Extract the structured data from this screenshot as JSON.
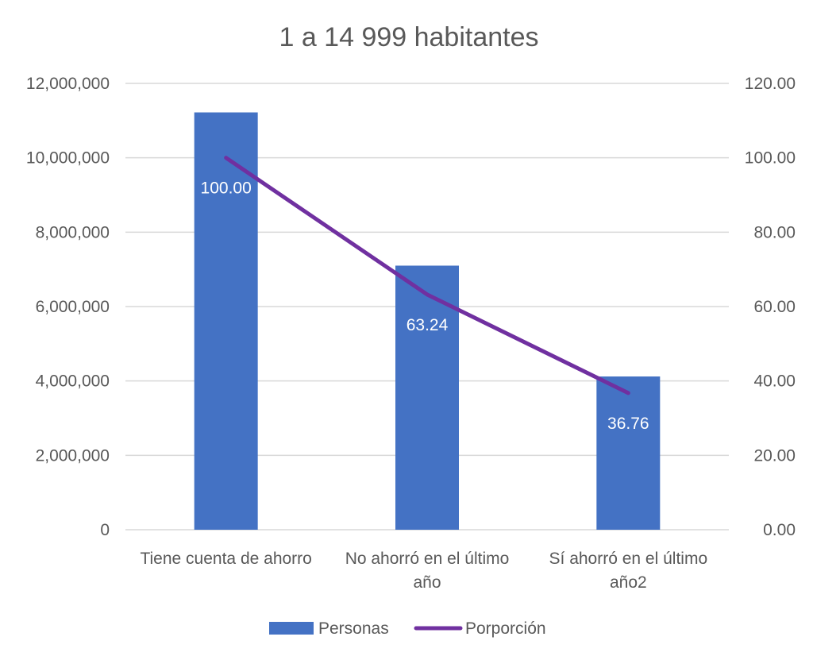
{
  "chart_data": {
    "type": "bar",
    "title": "1 a 14 999 habitantes",
    "categories": [
      [
        "Tiene cuenta de ahorro"
      ],
      [
        "No ahorró en el último",
        "año"
      ],
      [
        "Sí ahorró en el último",
        "año2"
      ]
    ],
    "series": [
      {
        "name": "Personas",
        "type": "bar",
        "axis": "left",
        "color": "#4472c4",
        "values": [
          11220000,
          7100000,
          4120000
        ]
      },
      {
        "name": "Porporción",
        "type": "line",
        "axis": "right",
        "color": "#7030a0",
        "values": [
          100.0,
          63.24,
          36.76
        ],
        "data_labels": [
          "100.00",
          "63.24",
          "36.76"
        ]
      }
    ],
    "y_left": {
      "min": 0,
      "max": 12000000,
      "ticks": [
        "0",
        "2,000,000",
        "4,000,000",
        "6,000,000",
        "8,000,000",
        "10,000,000",
        "12,000,000"
      ]
    },
    "y_right": {
      "min": 0,
      "max": 120,
      "ticks": [
        "0.00",
        "20.00",
        "40.00",
        "60.00",
        "80.00",
        "100.00",
        "120.00"
      ]
    },
    "grid": true,
    "legend": "bottom"
  }
}
